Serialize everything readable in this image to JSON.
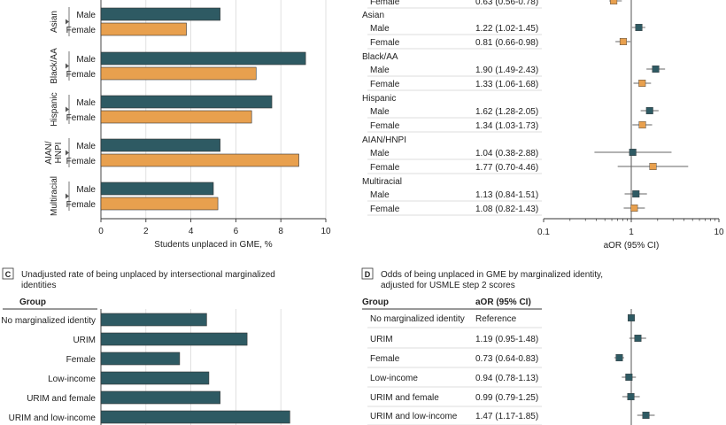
{
  "chart_data": [
    {
      "id": "A",
      "type": "bar",
      "orientation": "horizontal",
      "xlabel": "Students unplaced in GME, %",
      "xlim": [
        0,
        10
      ],
      "xticks": [
        0,
        2,
        4,
        6,
        8,
        10
      ],
      "grid": true,
      "colors": {
        "Male": "#2e5a63",
        "Female": "#e8a04e"
      },
      "groups": [
        {
          "name": "Asian",
          "bars": [
            {
              "label": "Male",
              "value": 5.3
            },
            {
              "label": "Female",
              "value": 3.8
            }
          ]
        },
        {
          "name": "Black/AA",
          "bars": [
            {
              "label": "Male",
              "value": 9.1
            },
            {
              "label": "Female",
              "value": 6.9
            }
          ]
        },
        {
          "name": "Hispanic",
          "bars": [
            {
              "label": "Male",
              "value": 7.6
            },
            {
              "label": "Female",
              "value": 6.7
            }
          ]
        },
        {
          "name": "AIAN/\nHNPI",
          "bars": [
            {
              "label": "Male",
              "value": 5.3
            },
            {
              "label": "Female",
              "value": 8.8
            }
          ]
        },
        {
          "name": "Multiracial",
          "bars": [
            {
              "label": "Male",
              "value": 5.0
            },
            {
              "label": "Female",
              "value": 5.2
            }
          ]
        }
      ]
    },
    {
      "id": "B",
      "type": "forest",
      "xlabel": "aOR (95% CI)",
      "xscale": "log",
      "xlim": [
        0.1,
        10
      ],
      "xticks": [
        "0.1",
        "1",
        "10"
      ],
      "colors": {
        "Male": "#2e5a63",
        "Female": "#e8a04e"
      },
      "partial_top": {
        "label": "Female",
        "text": "0.63 (0.56-0.78)",
        "or": 0.63,
        "lo": 0.56,
        "hi": 0.78
      },
      "groups": [
        {
          "name": "Asian",
          "rows": [
            {
              "label": "Male",
              "text": "1.22 (1.02-1.45)",
              "or": 1.22,
              "lo": 1.02,
              "hi": 1.45
            },
            {
              "label": "Female",
              "text": "0.81 (0.66-0.98)",
              "or": 0.81,
              "lo": 0.66,
              "hi": 0.98
            }
          ]
        },
        {
          "name": "Black/AA",
          "rows": [
            {
              "label": "Male",
              "text": "1.90 (1.49-2.43)",
              "or": 1.9,
              "lo": 1.49,
              "hi": 2.43
            },
            {
              "label": "Female",
              "text": "1.33 (1.06-1.68)",
              "or": 1.33,
              "lo": 1.06,
              "hi": 1.68
            }
          ]
        },
        {
          "name": "Hispanic",
          "rows": [
            {
              "label": "Male",
              "text": "1.62 (1.28-2.05)",
              "or": 1.62,
              "lo": 1.28,
              "hi": 2.05
            },
            {
              "label": "Female",
              "text": "1.34 (1.03-1.73)",
              "or": 1.34,
              "lo": 1.03,
              "hi": 1.73
            }
          ]
        },
        {
          "name": "AIAN/HNPI",
          "rows": [
            {
              "label": "Male",
              "text": "1.04 (0.38-2.88)",
              "or": 1.04,
              "lo": 0.38,
              "hi": 2.88
            },
            {
              "label": "Female",
              "text": "1.77 (0.70-4.46)",
              "or": 1.77,
              "lo": 0.7,
              "hi": 4.46
            }
          ]
        },
        {
          "name": "Multiracial",
          "rows": [
            {
              "label": "Male",
              "text": "1.13 (0.84-1.51)",
              "or": 1.13,
              "lo": 0.84,
              "hi": 1.51
            },
            {
              "label": "Female",
              "text": "1.08 (0.82-1.43)",
              "or": 1.08,
              "lo": 0.82,
              "hi": 1.43
            }
          ]
        }
      ]
    },
    {
      "id": "C",
      "type": "bar",
      "orientation": "horizontal",
      "title": "Unadjusted rate of being unplaced by intersectional marginalized identities",
      "header": "Group",
      "color": "#2e5a63",
      "categories": [
        "No marginalized identity",
        "URIM",
        "Female",
        "Low-income",
        "URIM and female",
        "URIM and low-income"
      ],
      "values": [
        4.7,
        6.5,
        3.5,
        4.8,
        5.3,
        8.4
      ],
      "xlim": [
        0,
        10
      ]
    },
    {
      "id": "D",
      "type": "forest",
      "title": "Odds of being unplaced in GME by marginalized identity, adjusted for USMLE step 2 scores",
      "headers": {
        "group": "Group",
        "aor": "aOR (95% CI)"
      },
      "xscale": "log",
      "xlim": [
        0.1,
        10
      ],
      "color": "#2e5a63",
      "rows": [
        {
          "label": "No marginalized identity",
          "text": "Reference",
          "or": 1.0,
          "lo": null,
          "hi": null
        },
        {
          "label": "URIM",
          "text": "1.19 (0.95-1.48)",
          "or": 1.19,
          "lo": 0.95,
          "hi": 1.48
        },
        {
          "label": "Female",
          "text": "0.73 (0.64-0.83)",
          "or": 0.73,
          "lo": 0.64,
          "hi": 0.83
        },
        {
          "label": "Low-income",
          "text": "0.94 (0.78-1.13)",
          "or": 0.94,
          "lo": 0.78,
          "hi": 1.13
        },
        {
          "label": "URIM and female",
          "text": "0.99 (0.79-1.25)",
          "or": 0.99,
          "lo": 0.79,
          "hi": 1.25
        },
        {
          "label": "URIM and low-income",
          "text": "1.47 (1.17-1.85)",
          "or": 1.47,
          "lo": 1.17,
          "hi": 1.85
        }
      ]
    }
  ]
}
